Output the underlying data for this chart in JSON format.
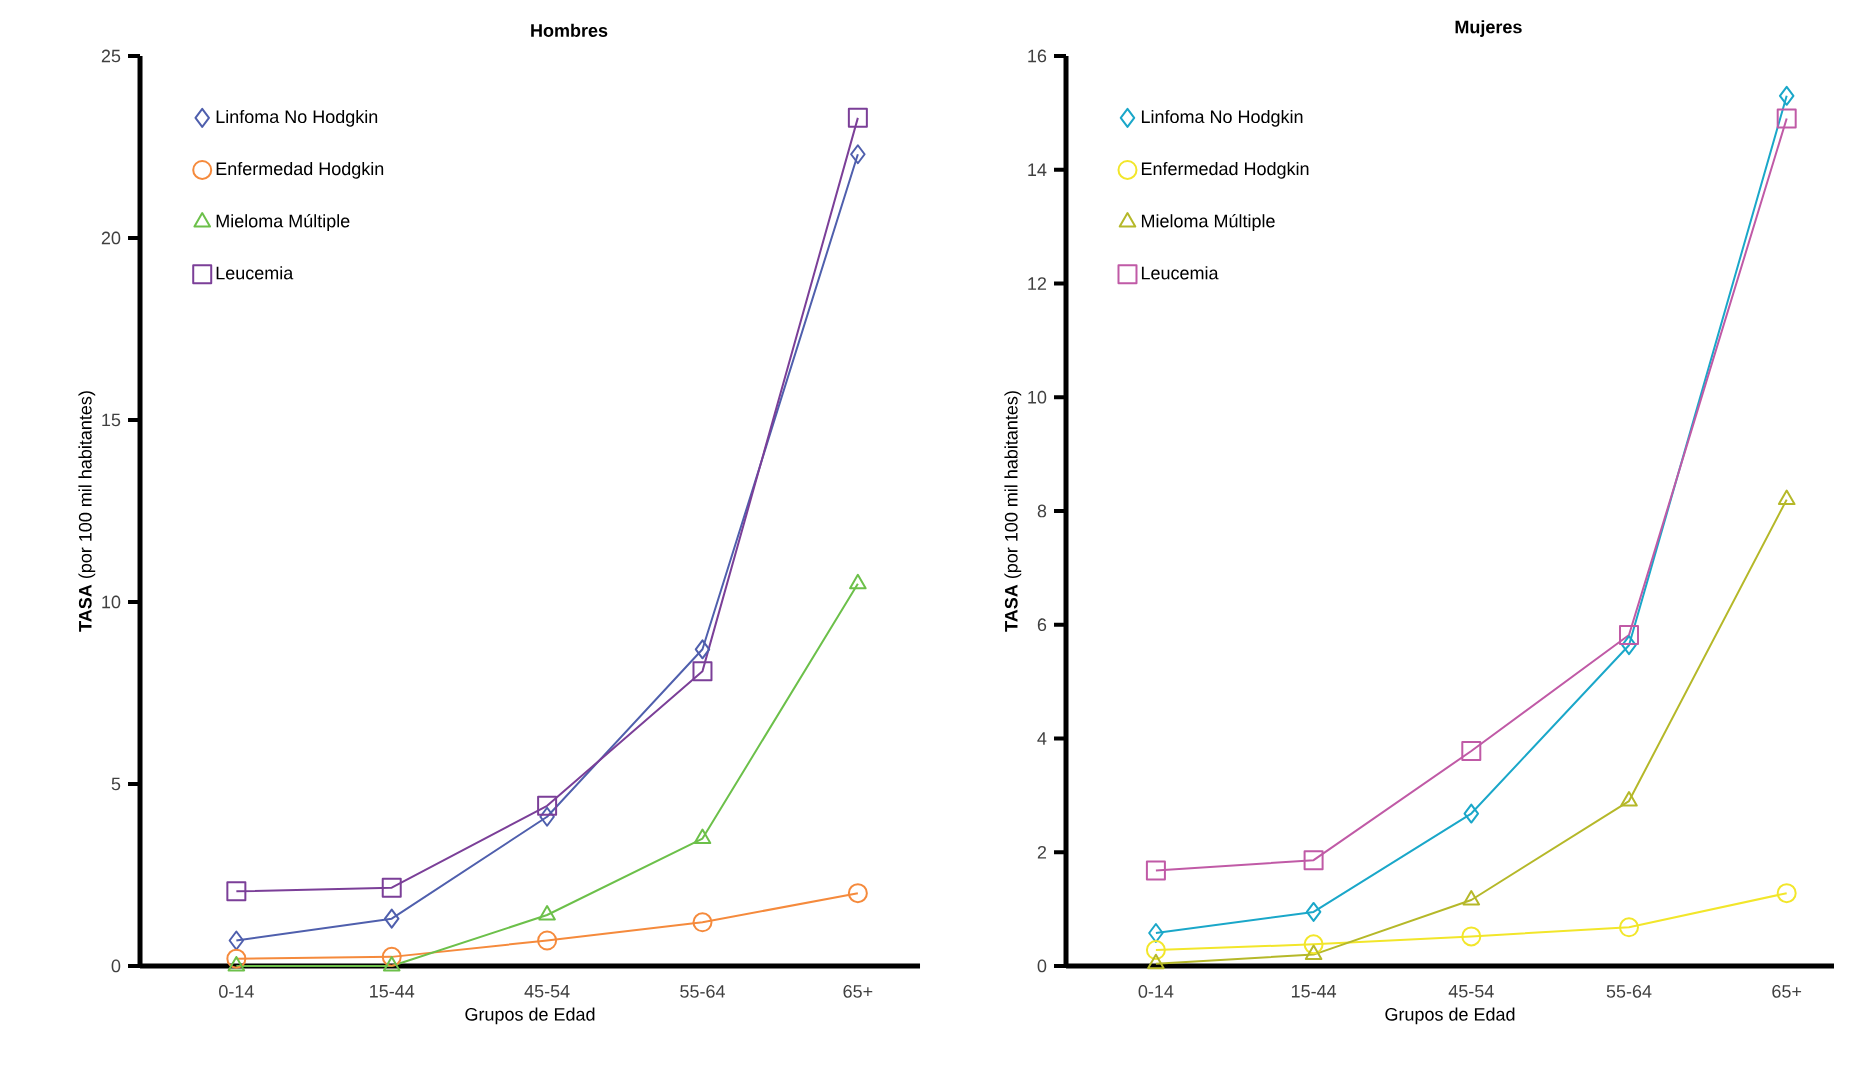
{
  "chart_data": [
    {
      "type": "line",
      "title": "Hombres",
      "xlabel": "Grupos de Edad",
      "ylabel": "**TASA** (por 100 mil habitantes)",
      "categories": [
        "0-14",
        "15-44",
        "45-54",
        "55-64",
        "65+"
      ],
      "ylim": [
        0,
        25
      ],
      "yticks": [
        0,
        5,
        10,
        15,
        20,
        25
      ],
      "legend": "top left",
      "series": [
        {
          "name": "Linfoma No Hodgkin",
          "color": "#4f5fad",
          "marker": "diamond",
          "values": [
            0.7,
            1.3,
            4.1,
            8.7,
            22.3
          ]
        },
        {
          "name": "Enfermedad Hodgkin",
          "color": "#f58a3c",
          "marker": "circle",
          "values": [
            0.2,
            0.25,
            0.7,
            1.2,
            2.0
          ]
        },
        {
          "name": "Mieloma Múltiple",
          "color": "#6cc04a",
          "marker": "triangle",
          "values": [
            0,
            0,
            1.4,
            3.5,
            10.5
          ]
        },
        {
          "name": "Leucemia",
          "color": "#7b3f98",
          "marker": "square",
          "values": [
            2.05,
            2.15,
            4.4,
            8.1,
            23.3
          ]
        }
      ]
    },
    {
      "type": "line",
      "title": "Mujeres",
      "xlabel": "Grupos de Edad",
      "ylabel": "**TASA** (por 100 mil habitantes)",
      "categories": [
        "0-14",
        "15-44",
        "45-54",
        "55-64",
        "65+"
      ],
      "ylim": [
        0,
        16
      ],
      "yticks": [
        0,
        2,
        4,
        6,
        8,
        10,
        12,
        14,
        16
      ],
      "legend": "top left",
      "series": [
        {
          "name": "Linfoma No Hodgkin",
          "color": "#1aa7c9",
          "marker": "diamond",
          "values": [
            0.58,
            0.95,
            2.68,
            5.64,
            15.3
          ]
        },
        {
          "name": "Enfermedad Hodgkin",
          "color": "#f2e62a",
          "marker": "circle",
          "values": [
            0.28,
            0.38,
            0.52,
            0.68,
            1.28
          ]
        },
        {
          "name": "Mieloma Múltiple",
          "color": "#b5b829",
          "marker": "triangle",
          "values": [
            0.04,
            0.2,
            1.16,
            2.9,
            8.2
          ]
        },
        {
          "name": "Leucemia",
          "color": "#c05aa6",
          "marker": "square",
          "values": [
            1.68,
            1.86,
            3.78,
            5.82,
            14.9
          ]
        }
      ]
    }
  ]
}
